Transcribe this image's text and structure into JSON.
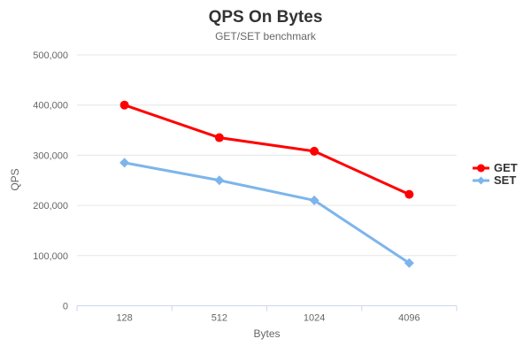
{
  "chart_data": {
    "type": "line",
    "title": "QPS On Bytes",
    "subtitle": "GET/SET benchmark",
    "xlabel": "Bytes",
    "ylabel": "QPS",
    "categories": [
      "128",
      "512",
      "1024",
      "4096"
    ],
    "series": [
      {
        "name": "GET",
        "color": "#ff0000",
        "marker": "circle",
        "values": [
          400000,
          335000,
          308000,
          222000
        ]
      },
      {
        "name": "SET",
        "color": "#7cb5ec",
        "marker": "diamond",
        "values": [
          285000,
          250000,
          210000,
          85000
        ]
      }
    ],
    "ylim": [
      0,
      500000
    ],
    "ytick_step": 100000,
    "ytick_labels": [
      "0",
      "100,000",
      "200,000",
      "300,000",
      "400,000",
      "500,000"
    ],
    "grid": true,
    "legend_position": "right",
    "colors": {
      "gridline": "#e6e6e6",
      "axis_line": "#ccd6eb",
      "axis_text": "#666666",
      "title_text": "#333333",
      "subtitle_text": "#666666",
      "legend_text": "#333333"
    }
  }
}
